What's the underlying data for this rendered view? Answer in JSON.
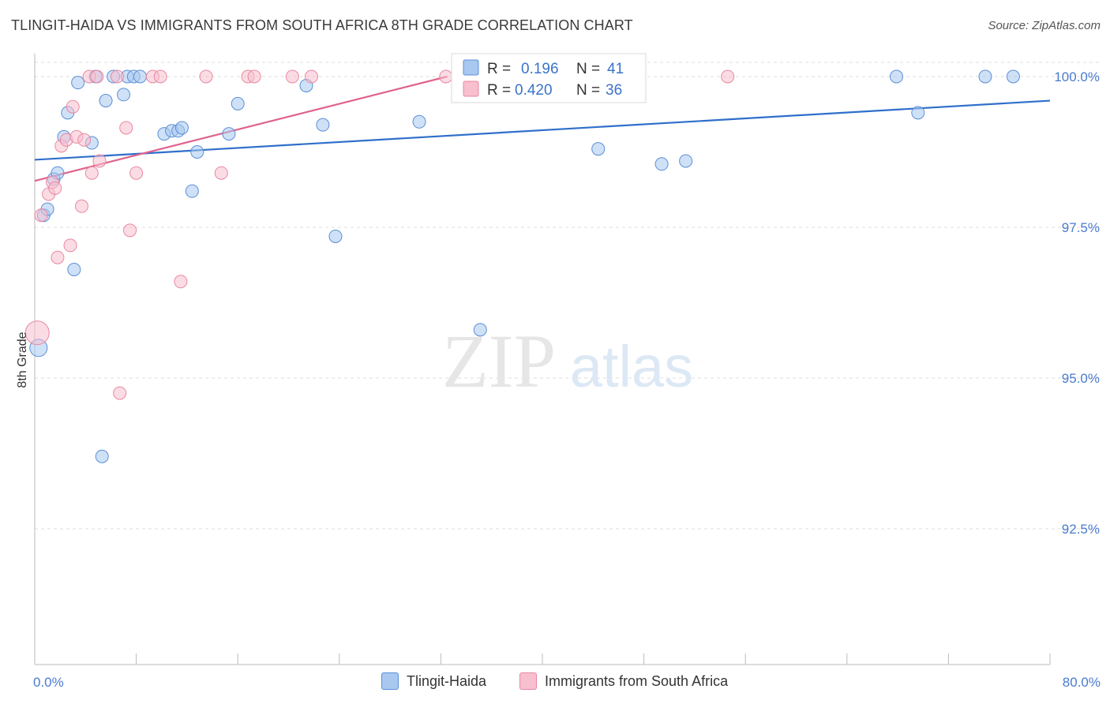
{
  "header": {
    "title": "TLINGIT-HAIDA VS IMMIGRANTS FROM SOUTH AFRICA 8TH GRADE CORRELATION CHART",
    "source": "Source: ZipAtlas.com"
  },
  "watermark": {
    "zip": "ZIP",
    "atlas": "atlas"
  },
  "colors": {
    "blue_fill": "#a8c8f0",
    "blue_stroke": "#5b8fd6",
    "blue_line": "#2f6fca",
    "pink_fill": "#f7bfd0",
    "pink_stroke": "#e8889f",
    "pink_line": "#e0628c",
    "tick_label": "#4a7bd0",
    "grid": "#dcdcdc"
  },
  "legend": {
    "rows": [
      {
        "r_label": "R =",
        "r_value": "0.196",
        "n_label": "N =",
        "n_value": "41",
        "series": "blue"
      },
      {
        "r_label": "R =",
        "r_value": "0.420",
        "n_label": "N =",
        "n_value": "36",
        "series": "pink"
      }
    ]
  },
  "chart_data": {
    "type": "scatter",
    "title": "TLINGIT-HAIDA VS IMMIGRANTS FROM SOUTH AFRICA 8TH GRADE CORRELATION CHART",
    "xlabel": "",
    "ylabel": "8th Grade",
    "xlim": [
      0,
      80
    ],
    "ylim": [
      90.2,
      100.3
    ],
    "x_tick_labels": [
      {
        "value": 0,
        "label": "0.0%"
      },
      {
        "value": 80,
        "label": "80.0%"
      }
    ],
    "y_ticks": [
      {
        "value": 100.0,
        "label": "100.0%"
      },
      {
        "value": 97.5,
        "label": "97.5%"
      },
      {
        "value": 95.0,
        "label": "95.0%"
      },
      {
        "value": 92.5,
        "label": "92.5%"
      }
    ],
    "x_minor_ticks": [
      0,
      8,
      16,
      24,
      32,
      40,
      48,
      56,
      64,
      72,
      80
    ],
    "grid": true,
    "series": [
      {
        "name": "Tlingit-Haida",
        "color": "blue",
        "trend": {
          "x": [
            0,
            80
          ],
          "y": [
            98.62,
            99.6
          ]
        },
        "points": [
          {
            "x": 0.3,
            "y": 95.5,
            "r": 11
          },
          {
            "x": 0.7,
            "y": 97.7
          },
          {
            "x": 1.0,
            "y": 97.8
          },
          {
            "x": 1.5,
            "y": 98.3
          },
          {
            "x": 1.8,
            "y": 98.4
          },
          {
            "x": 2.3,
            "y": 99.0
          },
          {
            "x": 2.6,
            "y": 99.4
          },
          {
            "x": 3.1,
            "y": 96.8
          },
          {
            "x": 3.4,
            "y": 99.9
          },
          {
            "x": 4.5,
            "y": 98.9
          },
          {
            "x": 4.8,
            "y": 100.0
          },
          {
            "x": 5.3,
            "y": 93.7
          },
          {
            "x": 5.6,
            "y": 99.6
          },
          {
            "x": 6.2,
            "y": 100.0
          },
          {
            "x": 7.0,
            "y": 99.7
          },
          {
            "x": 7.3,
            "y": 100.0
          },
          {
            "x": 7.8,
            "y": 100.0
          },
          {
            "x": 8.3,
            "y": 100.0
          },
          {
            "x": 10.2,
            "y": 99.05
          },
          {
            "x": 10.8,
            "y": 99.1
          },
          {
            "x": 11.3,
            "y": 99.1
          },
          {
            "x": 11.6,
            "y": 99.15
          },
          {
            "x": 12.4,
            "y": 98.1
          },
          {
            "x": 12.8,
            "y": 98.75
          },
          {
            "x": 15.3,
            "y": 99.05
          },
          {
            "x": 16.0,
            "y": 99.55
          },
          {
            "x": 21.4,
            "y": 99.85
          },
          {
            "x": 22.7,
            "y": 99.2
          },
          {
            "x": 23.7,
            "y": 97.35
          },
          {
            "x": 30.3,
            "y": 99.25
          },
          {
            "x": 35.1,
            "y": 95.8
          },
          {
            "x": 36.5,
            "y": 100.0
          },
          {
            "x": 44.4,
            "y": 98.8
          },
          {
            "x": 49.4,
            "y": 98.55
          },
          {
            "x": 51.3,
            "y": 98.6
          },
          {
            "x": 67.9,
            "y": 100.0
          },
          {
            "x": 69.6,
            "y": 99.4
          },
          {
            "x": 74.9,
            "y": 100.0
          },
          {
            "x": 77.1,
            "y": 100.0
          }
        ]
      },
      {
        "name": "Immigrants from South Africa",
        "color": "pink",
        "trend": {
          "x": [
            0,
            32.5
          ],
          "y": [
            98.27,
            100.0
          ]
        },
        "points": [
          {
            "x": 0.2,
            "y": 95.75,
            "r": 15
          },
          {
            "x": 0.5,
            "y": 97.7
          },
          {
            "x": 1.1,
            "y": 98.05
          },
          {
            "x": 1.4,
            "y": 98.25
          },
          {
            "x": 1.6,
            "y": 98.15
          },
          {
            "x": 1.8,
            "y": 97.0
          },
          {
            "x": 2.1,
            "y": 98.85
          },
          {
            "x": 2.5,
            "y": 98.95
          },
          {
            "x": 2.8,
            "y": 97.2
          },
          {
            "x": 3.0,
            "y": 99.5
          },
          {
            "x": 3.3,
            "y": 99.0
          },
          {
            "x": 3.7,
            "y": 97.85
          },
          {
            "x": 3.9,
            "y": 98.95
          },
          {
            "x": 4.3,
            "y": 100.0
          },
          {
            "x": 4.5,
            "y": 98.4
          },
          {
            "x": 4.9,
            "y": 100.0
          },
          {
            "x": 5.1,
            "y": 98.6
          },
          {
            "x": 6.5,
            "y": 100.0
          },
          {
            "x": 6.7,
            "y": 94.75
          },
          {
            "x": 7.2,
            "y": 99.15
          },
          {
            "x": 7.5,
            "y": 97.45
          },
          {
            "x": 8.0,
            "y": 98.4
          },
          {
            "x": 9.3,
            "y": 100.0
          },
          {
            "x": 9.9,
            "y": 100.0
          },
          {
            "x": 11.5,
            "y": 96.6
          },
          {
            "x": 13.5,
            "y": 100.0
          },
          {
            "x": 14.7,
            "y": 98.4
          },
          {
            "x": 16.8,
            "y": 100.0
          },
          {
            "x": 17.3,
            "y": 100.0
          },
          {
            "x": 20.3,
            "y": 100.0
          },
          {
            "x": 21.8,
            "y": 100.0
          },
          {
            "x": 32.4,
            "y": 100.0
          },
          {
            "x": 54.6,
            "y": 100.0
          }
        ]
      }
    ]
  }
}
